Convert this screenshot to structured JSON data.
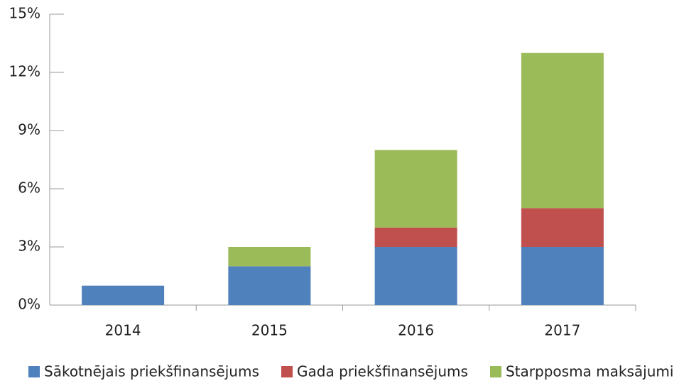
{
  "chart_data": {
    "type": "bar",
    "stacked": true,
    "categories": [
      "2014",
      "2015",
      "2016",
      "2017"
    ],
    "series": [
      {
        "name": "Sākotnējais priekšfinansējums",
        "color": "#4f81bd",
        "values": [
          1,
          2,
          3,
          3
        ]
      },
      {
        "name": "Gada priekšfinansējums",
        "color": "#c0504d",
        "values": [
          0,
          0,
          1,
          2
        ]
      },
      {
        "name": "Starpposma maksājumi",
        "color": "#9bbb59",
        "values": [
          0,
          1,
          4,
          8
        ]
      }
    ],
    "ylim": [
      0,
      15
    ],
    "yticks": [
      {
        "value": 0,
        "label": "0%"
      },
      {
        "value": 3,
        "label": "3%"
      },
      {
        "value": 6,
        "label": "6%"
      },
      {
        "value": 9,
        "label": "9%"
      },
      {
        "value": 12,
        "label": "12%"
      },
      {
        "value": 15,
        "label": "15%"
      }
    ],
    "legend": "bottom"
  }
}
